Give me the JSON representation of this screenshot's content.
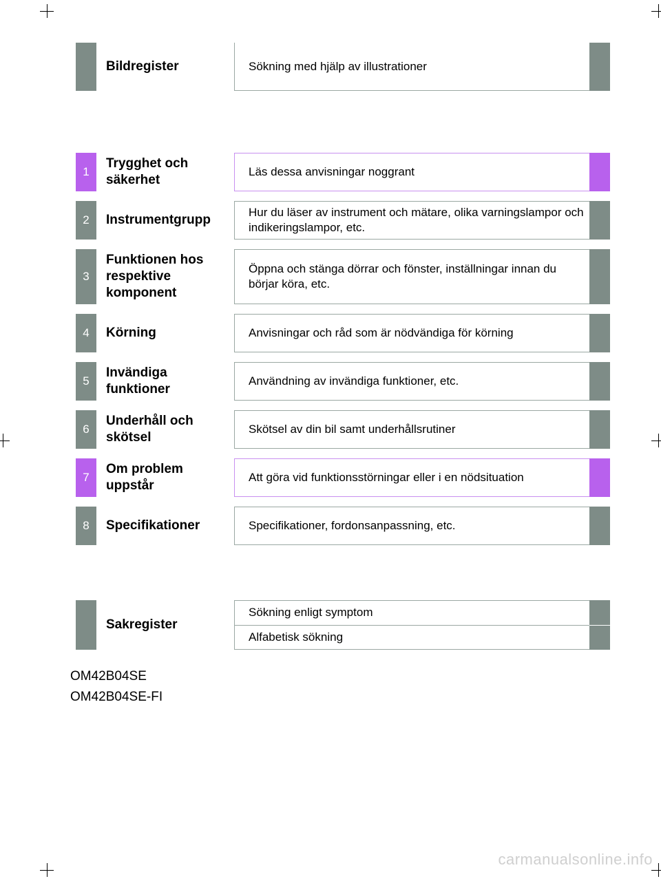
{
  "colors": {
    "gray": "#7e8c87",
    "gray_border": "#9aa7a2",
    "purple": "#b861ed",
    "purple_border": "#c88ff0",
    "white": "#ffffff",
    "text": "#000000",
    "watermark": "#cfcfcf"
  },
  "top": {
    "title": "Bildregister",
    "desc": "Sökning med hjälp av illustrationer"
  },
  "sections": [
    {
      "num": "1",
      "title": "Trygghet\noch säkerhet",
      "desc": "Läs dessa anvisningar noggrant",
      "highlight": true,
      "height": "reg"
    },
    {
      "num": "2",
      "title": "Instrumentgrupp",
      "desc": "Hur du läser av instrument och mätare, olika varningslampor och indikeringslampor, etc.",
      "highlight": false,
      "height": "reg"
    },
    {
      "num": "3",
      "title": "Funktionen hos respektive komponent",
      "desc": "Öppna och stänga dörrar och fönster, inställningar innan du börjar köra, etc.",
      "highlight": false,
      "height": "tall"
    },
    {
      "num": "4",
      "title": "Körning",
      "desc": "Anvisningar och råd som är nödvändiga för körning",
      "highlight": false,
      "height": "reg"
    },
    {
      "num": "5",
      "title": "Invändiga funktioner",
      "desc": "Användning av invändiga funktioner, etc.",
      "highlight": false,
      "height": "reg"
    },
    {
      "num": "6",
      "title": "Underhåll och skötsel",
      "desc": "Skötsel av din bil samt underhållsrutiner",
      "highlight": false,
      "height": "reg"
    },
    {
      "num": "7",
      "title": "Om problem uppstår",
      "desc": "Att göra vid funktionsstörningar eller i en nödsituation",
      "highlight": true,
      "height": "reg"
    },
    {
      "num": "8",
      "title": "Specifikationer",
      "desc": "Specifikationer, fordonsanpassning, etc.",
      "highlight": false,
      "height": "reg"
    }
  ],
  "footer": {
    "title": "Sakregister",
    "row1": "Sökning enligt symptom",
    "row2": "Alfabetisk sökning"
  },
  "doc_codes": [
    "OM42B04SE",
    "OM42B04SE-FI"
  ],
  "watermark": "carmanualsonline.info"
}
